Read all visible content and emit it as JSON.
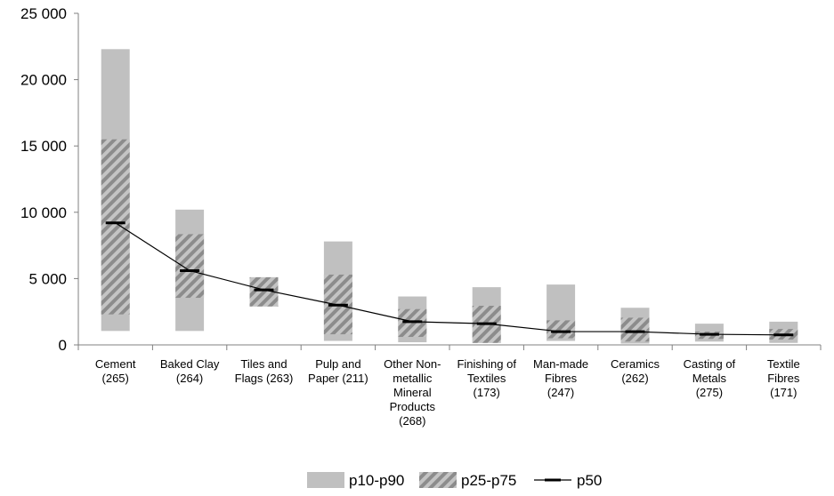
{
  "chart_data": {
    "type": "bar",
    "title": "",
    "xlabel": "",
    "ylabel": "",
    "ylim": [
      0,
      25000
    ],
    "yticks": [
      0,
      5000,
      10000,
      15000,
      20000,
      25000
    ],
    "ytick_labels": [
      "0",
      "5 000",
      "10 000",
      "15 000",
      "20 000",
      "25 000"
    ],
    "grid": false,
    "legend_position": "bottom",
    "categories": [
      [
        "Cement",
        "(265)"
      ],
      [
        "Baked Clay",
        "(264)"
      ],
      [
        "Tiles and",
        "Flags (263)"
      ],
      [
        "Pulp and",
        "Paper (211)"
      ],
      [
        "Other Non-",
        "metallic",
        "Mineral",
        "Products",
        "(268)"
      ],
      [
        "Finishing of",
        "Textiles",
        "(173)"
      ],
      [
        "Man-made",
        "Fibres",
        "(247)"
      ],
      [
        "Ceramics",
        "(262)"
      ],
      [
        "Casting of",
        "Metals",
        "(275)"
      ],
      [
        "Textile",
        "Fibres",
        "(171)"
      ]
    ],
    "series": [
      {
        "name": "p10-p90",
        "color": "#c0c0c0",
        "low": [
          1050,
          1050,
          2900,
          300,
          200,
          150,
          300,
          100,
          250,
          150
        ],
        "high": [
          22300,
          10200,
          5100,
          7800,
          3650,
          4350,
          4550,
          2800,
          1600,
          1750
        ]
      },
      {
        "name": "p25-p75",
        "pattern": "hatch",
        "color": "#a0a0a0",
        "low": [
          2300,
          3550,
          2900,
          800,
          600,
          150,
          500,
          250,
          450,
          400
        ],
        "high": [
          15500,
          8350,
          5100,
          5300,
          2700,
          2950,
          1850,
          2050,
          1000,
          1200
        ]
      },
      {
        "name": "p50",
        "color": "#000000",
        "values": [
          9200,
          5600,
          4150,
          3000,
          1750,
          1600,
          1000,
          1000,
          800,
          750
        ]
      }
    ]
  }
}
